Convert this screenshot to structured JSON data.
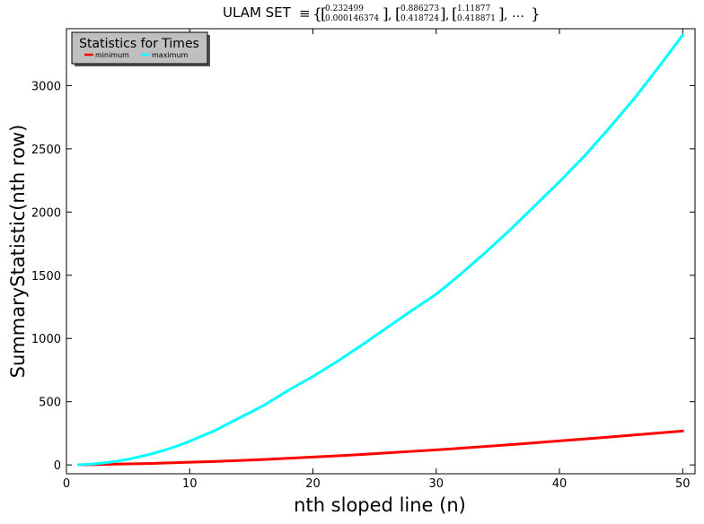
{
  "chart_data": {
    "type": "line",
    "title_prefix": "ULAM SET",
    "title_symbol": "≡",
    "title_matrices": [
      {
        "top": "0.232499",
        "bottom": "0.000146374"
      },
      {
        "top": "0.886273",
        "bottom": "0.418724"
      },
      {
        "top": "1.11877",
        "bottom": "0.418871"
      }
    ],
    "title_suffix": "…",
    "xlabel": "nth sloped line (n)",
    "ylabel": "SummaryStatistic(nth row)",
    "xlim": [
      0,
      51
    ],
    "ylim": [
      -70,
      3450
    ],
    "xticks": [
      0,
      10,
      20,
      30,
      40,
      50
    ],
    "yticks": [
      0,
      500,
      1000,
      1500,
      2000,
      2500,
      3000
    ],
    "grid": false,
    "legend": {
      "title": "Statistics for Times",
      "placement": "top-left",
      "entries": [
        "minimum",
        "maximum"
      ]
    },
    "series": [
      {
        "name": "minimum",
        "color": "#ff0000",
        "x": [
          1,
          2,
          3,
          4,
          5,
          6,
          7,
          8,
          9,
          10,
          12,
          14,
          16,
          18,
          20,
          22,
          24,
          26,
          28,
          30,
          32,
          34,
          36,
          38,
          40,
          42,
          44,
          46,
          48,
          50
        ],
        "y": [
          1,
          2,
          4,
          6,
          8,
          10,
          12,
          15,
          18,
          21,
          27,
          35,
          43,
          52,
          62,
          72,
          83,
          95,
          107,
          119,
          132,
          146,
          160,
          175,
          190,
          205,
          220,
          236,
          252,
          268
        ]
      },
      {
        "name": "maximum",
        "color": "#00ffff",
        "x": [
          1,
          2,
          3,
          4,
          5,
          6,
          7,
          8,
          9,
          10,
          12,
          14,
          16,
          18,
          20,
          22,
          24,
          26,
          28,
          30,
          32,
          34,
          36,
          38,
          40,
          42,
          44,
          46,
          48,
          50
        ],
        "y": [
          1,
          6,
          15,
          28,
          45,
          66,
          90,
          118,
          150,
          187,
          270,
          370,
          470,
          590,
          700,
          820,
          950,
          1085,
          1220,
          1350,
          1510,
          1680,
          1860,
          2050,
          2240,
          2440,
          2660,
          2890,
          3140,
          3400
        ]
      }
    ]
  }
}
